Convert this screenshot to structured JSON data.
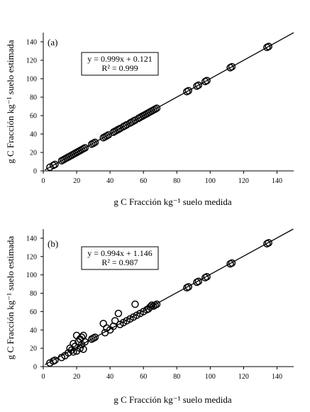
{
  "chart_data": [
    {
      "type": "scatter",
      "panel_label": "(a)",
      "xlabel": "g C Fracción kg⁻¹ suelo medida",
      "ylabel": "g C Fracción kg⁻¹ suelo estimada",
      "xlim": [
        0,
        150
      ],
      "ylim": [
        0,
        150
      ],
      "xticks": [
        "0",
        "20",
        "40",
        "60",
        "80",
        "100",
        "120",
        "140"
      ],
      "yticks": [
        "0",
        "20",
        "40",
        "60",
        "80",
        "100",
        "120",
        "140"
      ],
      "grid": false,
      "equation": "y = 0.999x + 0.121",
      "r2": "R² = 0.999",
      "fit": {
        "slope": 0.999,
        "intercept": 0.121
      },
      "marker": "open-circle",
      "points": [
        [
          4,
          4
        ],
        [
          6,
          6
        ],
        [
          7,
          7
        ],
        [
          11,
          11
        ],
        [
          12,
          12
        ],
        [
          13,
          13
        ],
        [
          14,
          14
        ],
        [
          15,
          15
        ],
        [
          16,
          16
        ],
        [
          17,
          17
        ],
        [
          18,
          18
        ],
        [
          19,
          19
        ],
        [
          20,
          20
        ],
        [
          21,
          21
        ],
        [
          22,
          22
        ],
        [
          23,
          23
        ],
        [
          24,
          24
        ],
        [
          25,
          25
        ],
        [
          29,
          29
        ],
        [
          30,
          30
        ],
        [
          31,
          31
        ],
        [
          36,
          36
        ],
        [
          37,
          37
        ],
        [
          38,
          38
        ],
        [
          39,
          39
        ],
        [
          42,
          42
        ],
        [
          43,
          43
        ],
        [
          44,
          44
        ],
        [
          45,
          45
        ],
        [
          46,
          46
        ],
        [
          48,
          48
        ],
        [
          49,
          49
        ],
        [
          50,
          50
        ],
        [
          52,
          52
        ],
        [
          53,
          53
        ],
        [
          54,
          54
        ],
        [
          55,
          55
        ],
        [
          57,
          57
        ],
        [
          58,
          58
        ],
        [
          59,
          59
        ],
        [
          60,
          60
        ],
        [
          61,
          61
        ],
        [
          62,
          62
        ],
        [
          63,
          63
        ],
        [
          64,
          64
        ],
        [
          65,
          65
        ],
        [
          66,
          66
        ],
        [
          67,
          67
        ],
        [
          68,
          68
        ],
        [
          86,
          86
        ],
        [
          87,
          87
        ],
        [
          92,
          92
        ],
        [
          93,
          93
        ],
        [
          97,
          97
        ],
        [
          98,
          98
        ],
        [
          112,
          112
        ],
        [
          113,
          113
        ],
        [
          134,
          134
        ],
        [
          135,
          135
        ]
      ]
    },
    {
      "type": "scatter",
      "panel_label": "(b)",
      "xlabel": "g C Fracción kg⁻¹ suelo medida",
      "ylabel": "g C Fracción kg⁻¹ suelo estimada",
      "xlim": [
        0,
        150
      ],
      "ylim": [
        0,
        150
      ],
      "xticks": [
        "0",
        "20",
        "40",
        "60",
        "80",
        "100",
        "120",
        "140"
      ],
      "yticks": [
        "0",
        "20",
        "40",
        "60",
        "80",
        "100",
        "120",
        "140"
      ],
      "grid": false,
      "equation": "y = 0.994x + 1.146",
      "r2": "R² = 0.987",
      "fit": {
        "slope": 0.994,
        "intercept": 1.146
      },
      "marker": "open-circle",
      "points": [
        [
          4,
          4
        ],
        [
          6,
          6
        ],
        [
          7,
          7
        ],
        [
          11,
          10
        ],
        [
          13,
          12
        ],
        [
          15,
          15
        ],
        [
          16,
          20
        ],
        [
          17,
          18
        ],
        [
          18,
          16
        ],
        [
          18,
          25
        ],
        [
          19,
          22
        ],
        [
          20,
          17
        ],
        [
          20,
          34
        ],
        [
          21,
          27
        ],
        [
          22,
          20
        ],
        [
          22,
          30
        ],
        [
          23,
          24
        ],
        [
          23,
          32
        ],
        [
          24,
          19
        ],
        [
          24,
          34
        ],
        [
          25,
          27
        ],
        [
          29,
          30
        ],
        [
          30,
          31
        ],
        [
          31,
          32
        ],
        [
          36,
          47
        ],
        [
          37,
          37
        ],
        [
          38,
          42
        ],
        [
          40,
          40
        ],
        [
          42,
          44
        ],
        [
          43,
          50
        ],
        [
          45,
          58
        ],
        [
          46,
          46
        ],
        [
          48,
          48
        ],
        [
          50,
          50
        ],
        [
          52,
          52
        ],
        [
          54,
          54
        ],
        [
          55,
          68
        ],
        [
          56,
          56
        ],
        [
          58,
          58
        ],
        [
          60,
          60
        ],
        [
          62,
          62
        ],
        [
          63,
          63
        ],
        [
          64,
          65
        ],
        [
          65,
          67
        ],
        [
          66,
          66
        ],
        [
          67,
          67
        ],
        [
          68,
          68
        ],
        [
          86,
          86
        ],
        [
          87,
          87
        ],
        [
          92,
          92
        ],
        [
          93,
          93
        ],
        [
          97,
          97
        ],
        [
          98,
          98
        ],
        [
          112,
          112
        ],
        [
          113,
          113
        ],
        [
          134,
          134
        ],
        [
          135,
          135
        ]
      ]
    }
  ]
}
